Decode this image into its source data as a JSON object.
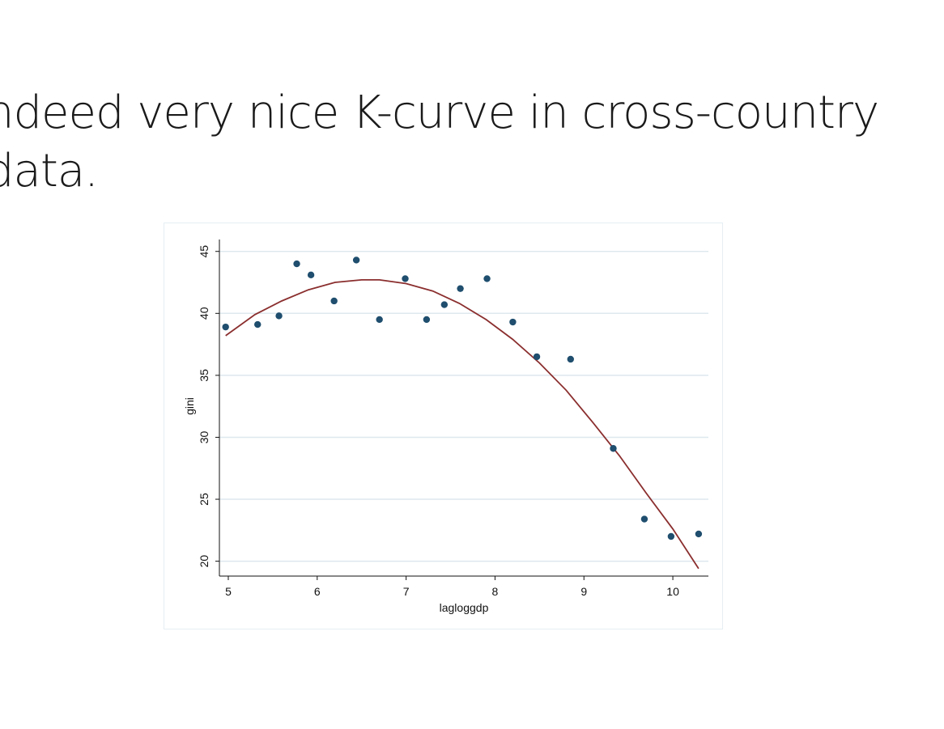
{
  "slide": {
    "title_line1": "ndeed very nice K-curve in cross-country",
    "title_line2": "data."
  },
  "chart_data": {
    "type": "scatter",
    "xlabel": "lagloggdp",
    "ylabel": "gini",
    "xlim": [
      4.9,
      10.4
    ],
    "ylim": [
      18.8,
      45.7
    ],
    "xticks": [
      5,
      6,
      7,
      8,
      9,
      10
    ],
    "yticks": [
      20,
      25,
      30,
      35,
      40,
      45
    ],
    "grid": "horizontal",
    "colors": {
      "points": "#1f4e6e",
      "fit": "#8b2e2e",
      "grid": "#dde8ee",
      "frame": "#e6eef2"
    },
    "series": [
      {
        "kind": "scatter",
        "x": [
          4.97,
          5.33,
          5.57,
          5.77,
          5.93,
          6.19,
          6.44,
          6.7,
          6.99,
          7.23,
          7.43,
          7.61,
          7.91,
          8.2,
          8.47,
          8.85,
          9.33,
          9.68,
          9.98,
          10.29
        ],
        "y": [
          38.9,
          39.1,
          39.8,
          44.0,
          43.1,
          41.0,
          44.3,
          39.5,
          42.8,
          39.5,
          40.7,
          42.0,
          42.8,
          39.3,
          36.5,
          36.3,
          29.1,
          23.4,
          22.0,
          22.2
        ]
      },
      {
        "kind": "fit",
        "x": [
          4.97,
          5.3,
          5.6,
          5.9,
          6.2,
          6.5,
          6.7,
          7.0,
          7.3,
          7.6,
          7.9,
          8.2,
          8.5,
          8.8,
          9.1,
          9.4,
          9.7,
          10.0,
          10.29
        ],
        "y": [
          38.2,
          39.9,
          41.0,
          41.9,
          42.5,
          42.7,
          42.7,
          42.4,
          41.8,
          40.8,
          39.5,
          37.9,
          36.0,
          33.8,
          31.2,
          28.5,
          25.5,
          22.6,
          19.4
        ]
      }
    ]
  }
}
